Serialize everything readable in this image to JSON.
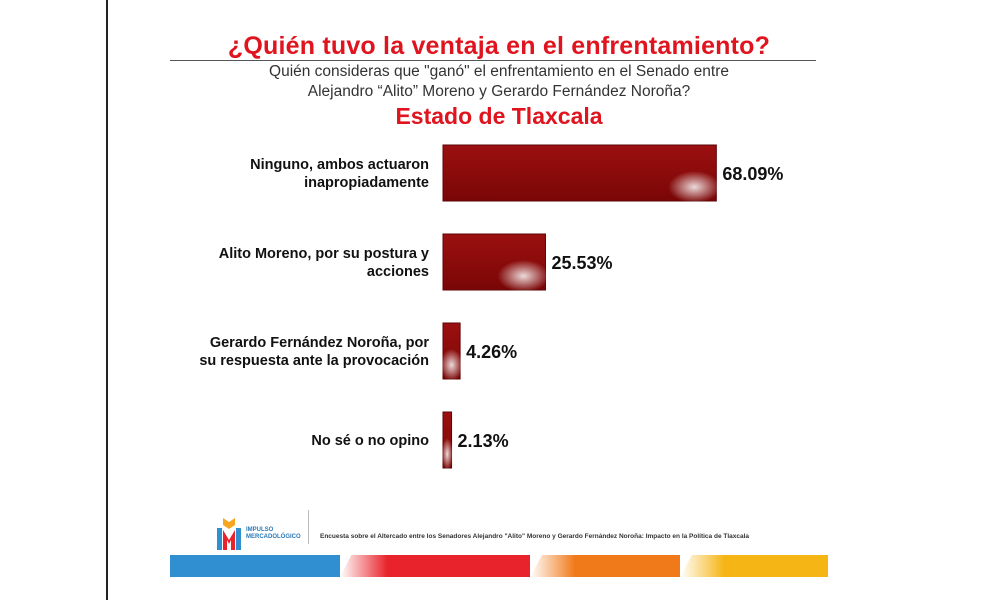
{
  "chart_data": {
    "type": "bar",
    "orientation": "horizontal",
    "title": "¿Quién tuvo la ventaja en el enfrentamiento?",
    "subtitle": "Quién consideras que \"ganó\" el enfrentamiento en el Senado entre\nAlejandro “Alito” Moreno  y Gerardo Fernández Noroña?",
    "region": "Estado de Tlaxcala",
    "categories": [
      [
        "Ninguno, ambos actuaron",
        "inapropiadamente"
      ],
      [
        "Alito Moreno, por su postura y",
        "acciones"
      ],
      [
        "Gerardo Fernández Noroña, por",
        "su respuesta ante la provocación"
      ],
      [
        "No sé o no opino"
      ]
    ],
    "values": [
      68.09,
      25.53,
      4.26,
      2.13
    ],
    "value_labels": [
      "68.09%",
      "25.53%",
      "4.26%",
      "2.13%"
    ],
    "xlim": [
      0,
      70
    ],
    "grid": false,
    "legend": "none",
    "bar_color": "#8b0a0a"
  },
  "footer": {
    "logo_text": "IMPULSO\nMERCADOLÓGICO",
    "note": "Encuesta sobre el Altercado entre los Senadores Alejandro \"Alito\" Moreno y Gerardo Fernández Noroña: Impacto en la Política de Tlaxcala"
  },
  "colors": {
    "title": "#e0141e",
    "stripe_blue": "#2f8fd0",
    "stripe_red": "#e8232b",
    "stripe_orange": "#f07a1a",
    "stripe_yellow": "#f5b514"
  }
}
